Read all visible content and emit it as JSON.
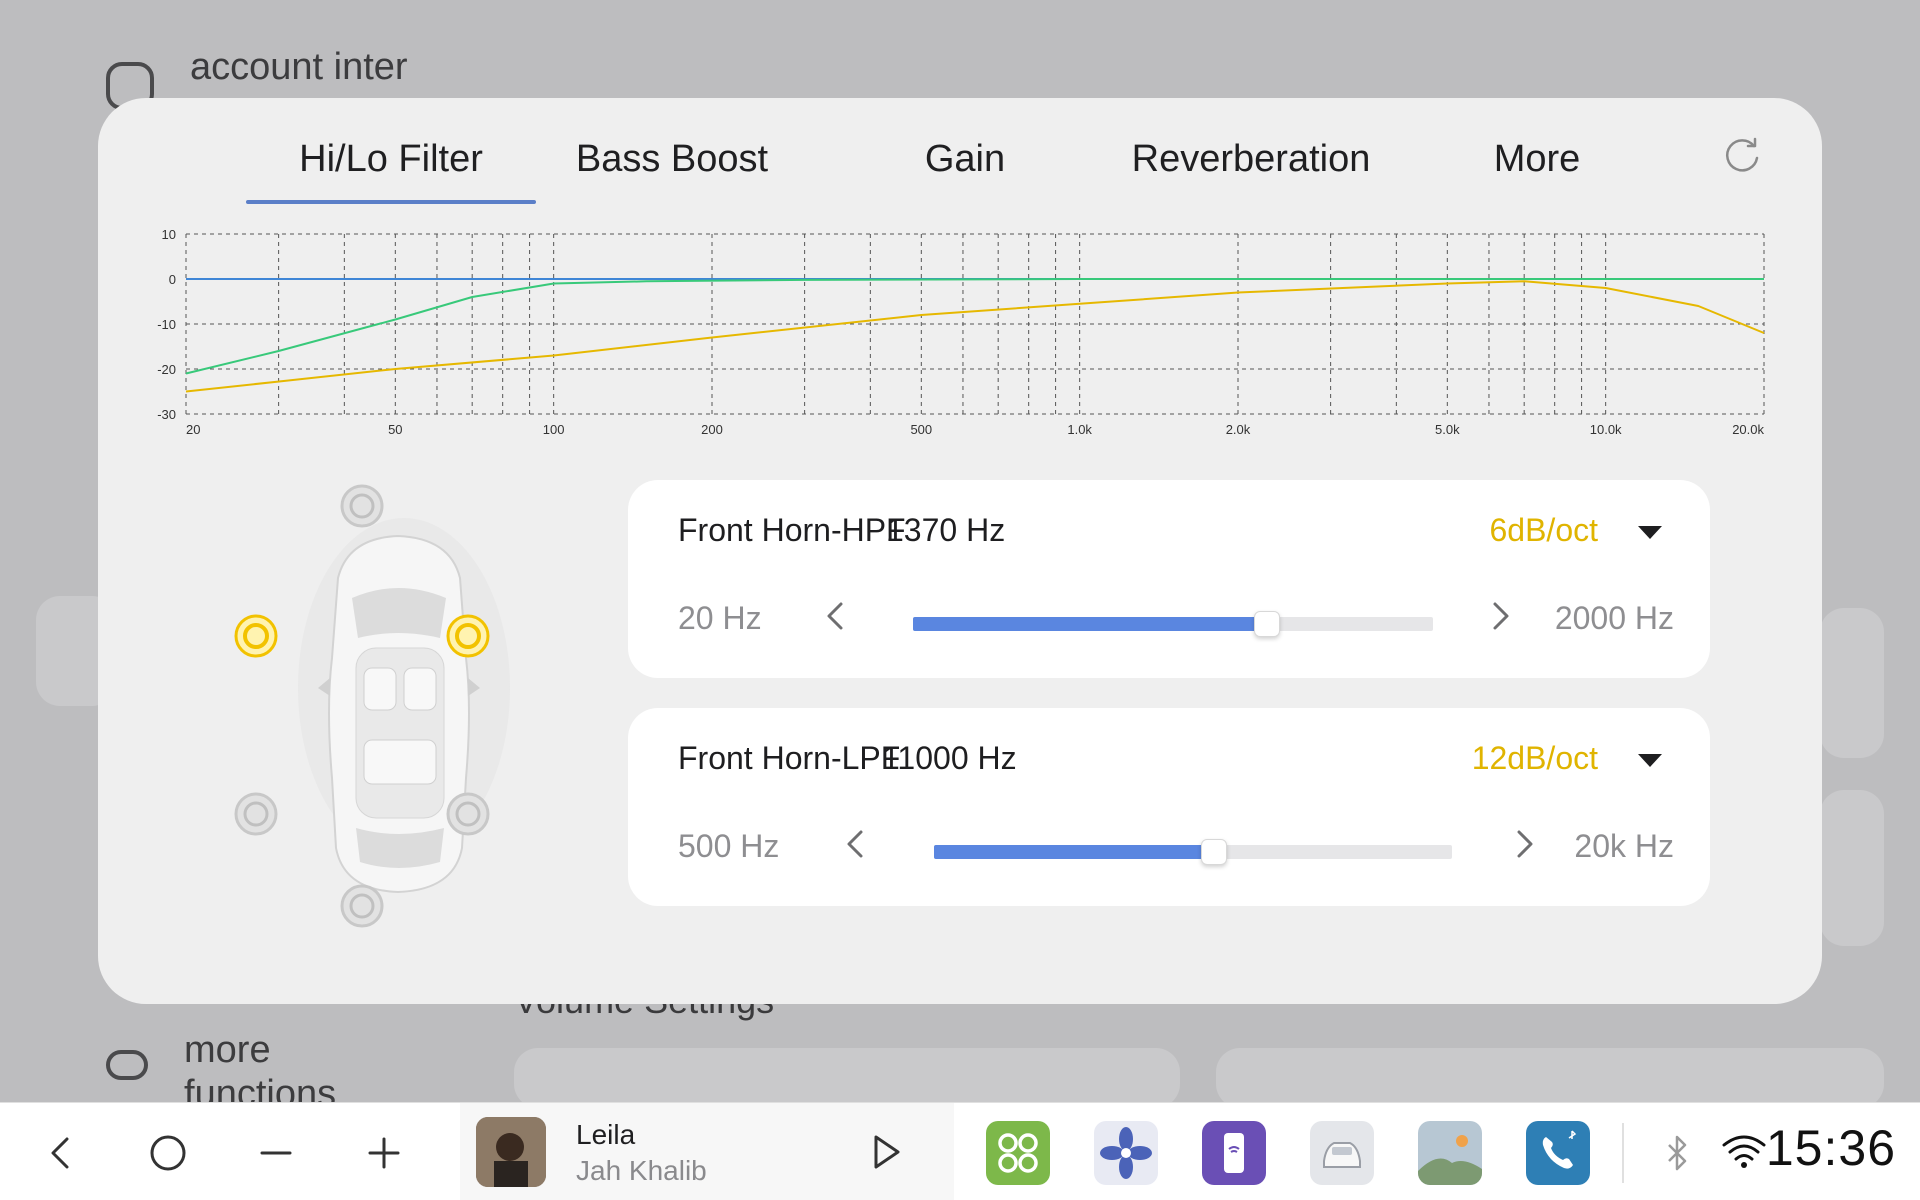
{
  "background": {
    "account_label": "account inter",
    "more_functions_label": "more functions",
    "volume_settings_label": "Volume Settings"
  },
  "tabs": [
    {
      "label": "Hi/Lo Filter",
      "active": true
    },
    {
      "label": "Bass Boost",
      "active": false
    },
    {
      "label": "Gain",
      "active": false
    },
    {
      "label": "Reverberation",
      "active": false
    },
    {
      "label": "More",
      "active": false
    }
  ],
  "reset_icon": "refresh-icon",
  "chart_data": {
    "type": "line",
    "xscale": "log",
    "xlim": [
      20,
      20000
    ],
    "ylim": [
      -30,
      10
    ],
    "grid": true,
    "x_tick_labels": [
      "20",
      "50",
      "100",
      "200",
      "500",
      "1.0k",
      "2.0k",
      "5.0k",
      "10.0k",
      "20.0k"
    ],
    "y_tick_labels": [
      "10",
      "0",
      "-10",
      "-20",
      "-30"
    ],
    "series": [
      {
        "color": "#3f86d6",
        "x": [
          20,
          20000
        ],
        "y": [
          0,
          0
        ]
      },
      {
        "color": "#38c97a",
        "x": [
          20,
          30,
          50,
          70,
          100,
          150,
          300,
          1000,
          20000
        ],
        "y": [
          -21,
          -16,
          -9,
          -4,
          -1,
          -0.5,
          -0.2,
          0,
          0
        ]
      },
      {
        "color": "#e6b800",
        "x": [
          20,
          50,
          100,
          200,
          500,
          1000,
          2000,
          5000,
          7000,
          10000,
          15000,
          20000
        ],
        "y": [
          -25,
          -20,
          -17,
          -13,
          -8,
          -5.5,
          -3,
          -1,
          -0.5,
          -2,
          -6,
          -12
        ]
      }
    ]
  },
  "speakers": {
    "active_color": "#f2c200",
    "inactive_color": "#c9c9c9",
    "positions": [
      "center-front",
      "front-left",
      "front-right",
      "rear-left",
      "rear-right",
      "center-rear"
    ],
    "active": [
      "front-left",
      "front-right"
    ]
  },
  "filters": [
    {
      "name": "Front Horn-HPF",
      "frequency": "1370 Hz",
      "slope": "6dB/oct",
      "min_label": "20 Hz",
      "max_label": "2000 Hz",
      "level": 0.68
    },
    {
      "name": "Front Horn-LPF",
      "frequency": "11000 Hz",
      "slope": "12dB/oct",
      "min_label": "500 Hz",
      "max_label": "20k Hz",
      "level": 0.54
    }
  ],
  "taskbar": {
    "song_title": "Leila",
    "song_artist": "Jah Khalib",
    "time": "15:36",
    "apps": [
      {
        "icon": "apps-grid-icon",
        "color": "#7db84a"
      },
      {
        "icon": "fan-icon",
        "color": "#e8eaf3"
      },
      {
        "icon": "phone-hotspot-icon",
        "color": "#6a4fb5"
      },
      {
        "icon": "car-icon",
        "color": "#e4e6ea"
      },
      {
        "icon": "gallery-icon",
        "color": "#b7c7d3"
      },
      {
        "icon": "phone-icon",
        "color": "#2e7fb5"
      }
    ]
  }
}
